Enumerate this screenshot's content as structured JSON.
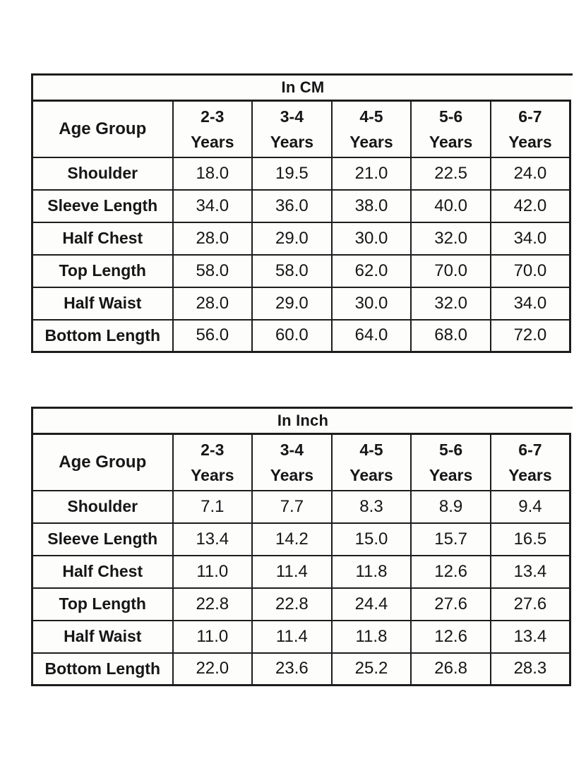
{
  "colors": {
    "page_background": "#ffffff",
    "border": "#1d1d1d",
    "text": "#161616",
    "cell_background": "#fdfdfc"
  },
  "tables": [
    {
      "title": "In CM",
      "corner_label": "Age Group",
      "columns": [
        {
          "range": "2-3",
          "unit": "Years"
        },
        {
          "range": "3-4",
          "unit": "Years"
        },
        {
          "range": "4-5",
          "unit": "Years"
        },
        {
          "range": "5-6",
          "unit": "Years"
        },
        {
          "range": "6-7",
          "unit": "Years"
        }
      ],
      "rows": [
        {
          "label": "Shoulder",
          "values": [
            "18.0",
            "19.5",
            "21.0",
            "22.5",
            "24.0"
          ]
        },
        {
          "label": "Sleeve Length",
          "values": [
            "34.0",
            "36.0",
            "38.0",
            "40.0",
            "42.0"
          ]
        },
        {
          "label": "Half Chest",
          "values": [
            "28.0",
            "29.0",
            "30.0",
            "32.0",
            "34.0"
          ]
        },
        {
          "label": "Top Length",
          "values": [
            "58.0",
            "58.0",
            "62.0",
            "70.0",
            "70.0"
          ]
        },
        {
          "label": "Half Waist",
          "values": [
            "28.0",
            "29.0",
            "30.0",
            "32.0",
            "34.0"
          ]
        },
        {
          "label": "Bottom Length",
          "values": [
            "56.0",
            "60.0",
            "64.0",
            "68.0",
            "72.0"
          ]
        }
      ]
    },
    {
      "title": "In Inch",
      "corner_label": "Age Group",
      "columns": [
        {
          "range": "2-3",
          "unit": "Years"
        },
        {
          "range": "3-4",
          "unit": "Years"
        },
        {
          "range": "4-5",
          "unit": "Years"
        },
        {
          "range": "5-6",
          "unit": "Years"
        },
        {
          "range": "6-7",
          "unit": "Years"
        }
      ],
      "rows": [
        {
          "label": "Shoulder",
          "values": [
            "7.1",
            "7.7",
            "8.3",
            "8.9",
            "9.4"
          ]
        },
        {
          "label": "Sleeve Length",
          "values": [
            "13.4",
            "14.2",
            "15.0",
            "15.7",
            "16.5"
          ]
        },
        {
          "label": "Half Chest",
          "values": [
            "11.0",
            "11.4",
            "11.8",
            "12.6",
            "13.4"
          ]
        },
        {
          "label": "Top Length",
          "values": [
            "22.8",
            "22.8",
            "24.4",
            "27.6",
            "27.6"
          ]
        },
        {
          "label": "Half Waist",
          "values": [
            "11.0",
            "11.4",
            "11.8",
            "12.6",
            "13.4"
          ]
        },
        {
          "label": "Bottom Length",
          "values": [
            "22.0",
            "23.6",
            "25.2",
            "26.8",
            "28.3"
          ]
        }
      ]
    }
  ]
}
